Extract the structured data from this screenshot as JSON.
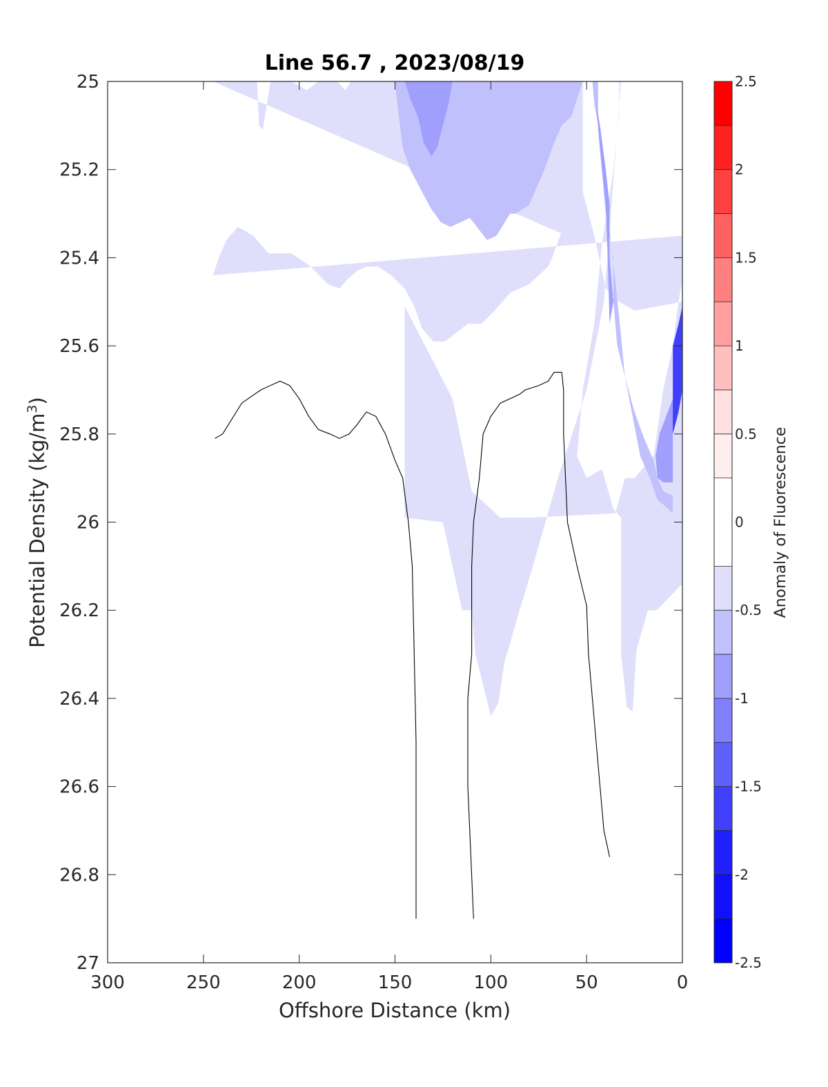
{
  "chart_data": {
    "type": "contour",
    "title": "Line 56.7 , 2023/08/19",
    "xlabel": "Offshore Distance (km)",
    "ylabel_base": "Potential Density (kg/m",
    "ylabel_sup": "3",
    "ylabel_close": ")",
    "xlim": [
      300,
      0
    ],
    "ylim": [
      25,
      27
    ],
    "y_reversed": true,
    "x_reversed": true,
    "xticks": [
      "300",
      "250",
      "200",
      "150",
      "100",
      "50",
      "0"
    ],
    "yticks": [
      "25",
      "25.2",
      "25.4",
      "25.6",
      "25.8",
      "26",
      "26.2",
      "26.4",
      "26.6",
      "26.8",
      "27"
    ],
    "xtick_values": [
      300,
      250,
      200,
      150,
      100,
      50,
      0
    ],
    "ytick_values": [
      25,
      25.2,
      25.4,
      25.6,
      25.8,
      26,
      26.2,
      26.4,
      26.6,
      26.8,
      27
    ],
    "colorbar": {
      "label": "Anomaly of Fluorescence",
      "range": [
        -2.5,
        2.5
      ],
      "tick_labels": [
        "2.5",
        "2",
        "1.5",
        "1",
        "0.5",
        "0",
        "-0.5",
        "-1",
        "-1.5",
        "-2",
        "-2.5"
      ],
      "tick_values": [
        2.5,
        2,
        1.5,
        1,
        0.5,
        0,
        -0.5,
        -1,
        -1.5,
        -2,
        -2.5
      ],
      "levels": [
        {
          "from": 2.25,
          "to": 2.5,
          "color": "#ff0000"
        },
        {
          "from": 2.0,
          "to": 2.25,
          "color": "#ff2020"
        },
        {
          "from": 1.75,
          "to": 2.0,
          "color": "#ff4040"
        },
        {
          "from": 1.5,
          "to": 1.75,
          "color": "#ff6060"
        },
        {
          "from": 1.25,
          "to": 1.5,
          "color": "#ff8080"
        },
        {
          "from": 1.0,
          "to": 1.25,
          "color": "#ff9f9f"
        },
        {
          "from": 0.75,
          "to": 1.0,
          "color": "#ffbfbf"
        },
        {
          "from": 0.5,
          "to": 0.75,
          "color": "#ffdfdf"
        },
        {
          "from": 0.25,
          "to": 0.5,
          "color": "#ffeeee"
        },
        {
          "from": -0.25,
          "to": 0.25,
          "color": "#ffffff"
        },
        {
          "from": -0.5,
          "to": -0.25,
          "color": "#dfdffc"
        },
        {
          "from": -0.75,
          "to": -0.5,
          "color": "#c0c0fc"
        },
        {
          "from": -1.0,
          "to": -0.75,
          "color": "#a0a0fc"
        },
        {
          "from": -1.25,
          "to": -1.0,
          "color": "#8080fc"
        },
        {
          "from": -1.5,
          "to": -1.25,
          "color": "#6060fc"
        },
        {
          "from": -1.75,
          "to": -1.5,
          "color": "#4040fc"
        },
        {
          "from": -2.0,
          "to": -1.75,
          "color": "#2020fc"
        },
        {
          "from": -2.25,
          "to": -2.0,
          "color": "#1010fc"
        },
        {
          "from": -2.5,
          "to": -2.25,
          "color": "#0000ff"
        }
      ]
    },
    "filled_regions": [
      {
        "level": -0.375,
        "color": "#dfdffc",
        "points": [
          [
            245,
            25.0
          ],
          [
            222,
            25.0
          ],
          [
            221,
            25.1
          ],
          [
            219,
            25.11
          ],
          [
            215,
            25.0
          ],
          [
            204,
            25.0
          ],
          [
            196,
            25.02
          ],
          [
            190,
            25.0
          ],
          [
            180,
            25.0
          ],
          [
            176,
            25.02
          ],
          [
            173,
            25.0
          ],
          [
            32,
            25.0
          ],
          [
            41,
            25.5
          ],
          [
            50,
            25.7
          ],
          [
            65,
            25.9
          ],
          [
            78,
            26.1
          ],
          [
            85,
            26.2
          ],
          [
            93,
            26.32
          ],
          [
            96,
            26.41
          ],
          [
            100,
            26.44
          ],
          [
            108,
            26.3
          ],
          [
            110,
            26.2
          ],
          [
            115,
            26.2
          ],
          [
            125,
            26.0
          ],
          [
            145,
            25.99
          ],
          [
            145,
            25.51
          ],
          [
            120,
            25.72
          ],
          [
            110,
            25.93
          ],
          [
            95,
            25.99
          ],
          [
            80,
            25.99
          ],
          [
            35,
            25.98
          ],
          [
            30,
            25.9
          ],
          [
            25,
            25.9
          ],
          [
            15,
            25.85
          ],
          [
            10,
            25.7
          ],
          [
            5,
            25.6
          ],
          [
            2,
            25.5
          ],
          [
            0,
            25.45
          ],
          [
            0,
            25.9
          ],
          [
            0,
            26.03
          ],
          [
            0,
            26.14
          ],
          [
            13.5,
            26.2
          ],
          [
            18,
            26.2
          ],
          [
            24,
            26.29
          ],
          [
            26,
            26.43
          ],
          [
            29,
            26.42
          ],
          [
            32,
            26.3
          ],
          [
            32,
            25.99
          ],
          [
            36,
            25.97
          ],
          [
            42,
            25.88
          ],
          [
            50,
            25.9
          ],
          [
            55,
            25.85
          ],
          [
            52,
            25.7
          ],
          [
            46,
            25.55
          ],
          [
            42,
            25.37
          ],
          [
            36,
            25.2
          ],
          [
            33,
            25.07
          ],
          [
            33,
            25.0
          ],
          [
            52,
            25.0
          ],
          [
            52,
            25.1
          ],
          [
            52,
            25.25
          ],
          [
            46,
            25.35
          ],
          [
            40,
            25.47
          ],
          [
            33,
            25.5
          ],
          [
            25,
            25.52
          ],
          [
            0,
            25.5
          ],
          [
            0,
            25.44
          ],
          [
            0,
            25.35
          ],
          [
            245,
            25.44
          ],
          [
            242,
            25.4
          ],
          [
            238,
            25.36
          ],
          [
            232,
            25.33
          ],
          [
            224,
            25.35
          ],
          [
            216,
            25.39
          ],
          [
            204,
            25.39
          ],
          [
            194,
            25.42
          ],
          [
            185,
            25.46
          ],
          [
            179,
            25.47
          ],
          [
            175,
            25.45
          ],
          [
            170,
            25.43
          ],
          [
            165,
            25.42
          ],
          [
            159,
            25.42
          ],
          [
            152,
            25.44
          ],
          [
            145,
            25.47
          ],
          [
            140,
            25.51
          ],
          [
            136,
            25.56
          ],
          [
            130,
            25.59
          ],
          [
            124,
            25.59
          ],
          [
            118,
            25.57
          ],
          [
            112,
            25.55
          ],
          [
            105,
            25.55
          ],
          [
            98,
            25.52
          ],
          [
            90,
            25.48
          ],
          [
            80,
            25.46
          ],
          [
            70,
            25.42
          ],
          [
            68,
            25.4
          ],
          [
            62,
            25.33
          ],
          [
            57,
            25.29
          ],
          [
            53,
            25.3
          ],
          [
            50,
            25.37
          ]
        ]
      },
      {
        "level": -0.625,
        "color": "#c0c0fc",
        "points": [
          [
            150,
            25.0
          ],
          [
            52,
            25.0
          ],
          [
            58,
            25.08
          ],
          [
            63,
            25.1
          ],
          [
            67,
            25.14
          ],
          [
            72,
            25.2
          ],
          [
            77,
            25.25
          ],
          [
            80,
            25.28
          ],
          [
            87,
            25.3
          ],
          [
            90,
            25.3
          ],
          [
            97,
            25.35
          ],
          [
            102,
            25.36
          ],
          [
            109,
            25.32
          ],
          [
            111,
            25.31
          ],
          [
            116,
            25.32
          ],
          [
            121,
            25.33
          ],
          [
            126,
            25.32
          ],
          [
            131,
            25.29
          ],
          [
            136,
            25.25
          ],
          [
            142,
            25.2
          ],
          [
            146,
            25.15
          ],
          [
            148,
            25.08
          ],
          [
            150,
            25.0
          ]
        ]
      },
      {
        "level": -0.875,
        "color": "#a0a0fc",
        "points": [
          [
            145,
            25.0
          ],
          [
            120,
            25.0
          ],
          [
            122,
            25.05
          ],
          [
            125,
            25.1
          ],
          [
            128,
            25.15
          ],
          [
            131,
            25.17
          ],
          [
            135,
            25.14
          ],
          [
            138,
            25.08
          ],
          [
            142,
            25.04
          ],
          [
            145,
            25.0
          ]
        ]
      },
      {
        "level": -0.625,
        "color": "#c0c0fc",
        "points": [
          [
            47,
            25.0
          ],
          [
            44,
            25.0
          ],
          [
            44,
            25.11
          ],
          [
            40,
            25.3
          ],
          [
            36,
            25.4
          ],
          [
            36,
            25.5
          ],
          [
            34,
            25.6
          ],
          [
            30,
            25.67
          ],
          [
            26,
            25.76
          ],
          [
            22,
            25.85
          ],
          [
            17,
            25.9
          ],
          [
            13,
            25.95
          ],
          [
            10,
            25.96
          ],
          [
            5,
            25.98
          ],
          [
            5,
            25.94
          ],
          [
            10,
            25.93
          ],
          [
            13,
            25.9
          ],
          [
            15,
            25.86
          ],
          [
            20,
            25.81
          ],
          [
            25,
            25.75
          ],
          [
            30,
            25.67
          ],
          [
            32,
            25.58
          ],
          [
            35,
            25.45
          ],
          [
            39,
            25.3
          ],
          [
            42,
            25.15
          ],
          [
            46,
            25.05
          ],
          [
            47,
            25.0
          ]
        ]
      },
      {
        "level": -0.875,
        "color": "#a0a0fc",
        "points": [
          [
            45,
            25.05
          ],
          [
            43,
            25.1
          ],
          [
            40,
            25.2
          ],
          [
            38,
            25.28
          ],
          [
            38,
            25.4
          ],
          [
            36,
            25.5
          ],
          [
            38,
            25.55
          ],
          [
            39,
            25.4
          ],
          [
            40,
            25.28
          ],
          [
            43,
            25.15
          ],
          [
            45,
            25.05
          ]
        ]
      },
      {
        "level": -0.875,
        "color": "#a0a0fc",
        "points": [
          [
            14,
            25.85
          ],
          [
            12,
            25.8
          ],
          [
            5,
            25.72
          ],
          [
            2,
            25.72
          ],
          [
            5,
            25.8
          ],
          [
            5,
            25.91
          ],
          [
            10,
            25.91
          ],
          [
            13,
            25.9
          ],
          [
            14,
            25.85
          ]
        ]
      },
      {
        "level": -1.625,
        "color": "#4040fc",
        "points": [
          [
            5,
            25.8
          ],
          [
            2,
            25.75
          ],
          [
            0,
            25.7
          ],
          [
            0,
            25.6
          ],
          [
            0,
            25.51
          ],
          [
            2,
            25.55
          ],
          [
            5,
            25.6
          ],
          [
            5,
            25.7
          ],
          [
            5,
            25.8
          ]
        ]
      }
    ],
    "contour_lines": [
      {
        "level": 0,
        "points": [
          [
            244,
            25.81
          ],
          [
            240,
            25.8
          ],
          [
            230,
            25.73
          ],
          [
            220,
            25.7
          ],
          [
            210,
            25.68
          ],
          [
            205,
            25.69
          ],
          [
            200,
            25.72
          ],
          [
            195,
            25.76
          ],
          [
            190,
            25.79
          ],
          [
            184,
            25.8
          ],
          [
            179,
            25.81
          ],
          [
            174,
            25.8
          ],
          [
            170,
            25.78
          ],
          [
            165,
            25.75
          ],
          [
            160,
            25.76
          ],
          [
            155,
            25.8
          ],
          [
            150,
            25.86
          ],
          [
            146,
            25.9
          ],
          [
            143,
            26.0
          ],
          [
            141,
            26.1
          ],
          [
            140,
            26.3
          ],
          [
            139,
            26.5
          ],
          [
            139,
            26.7
          ],
          [
            139,
            26.9
          ]
        ]
      },
      {
        "level": 0,
        "points": [
          [
            109,
            26.9
          ],
          [
            111,
            26.7
          ],
          [
            112,
            26.6
          ],
          [
            112,
            26.4
          ],
          [
            110,
            26.3
          ],
          [
            110,
            26.1
          ],
          [
            109,
            26.0
          ],
          [
            106,
            25.9
          ],
          [
            104,
            25.8
          ],
          [
            100,
            25.76
          ],
          [
            95,
            25.73
          ],
          [
            90,
            25.72
          ],
          [
            85,
            25.71
          ],
          [
            82,
            25.7
          ],
          [
            75,
            25.69
          ],
          [
            70,
            25.68
          ],
          [
            67,
            25.66
          ],
          [
            63,
            25.66
          ],
          [
            62,
            25.7
          ],
          [
            62,
            25.8
          ],
          [
            61,
            25.9
          ],
          [
            60,
            26.0
          ],
          [
            55,
            26.1
          ],
          [
            50,
            26.19
          ],
          [
            49,
            26.3
          ],
          [
            47,
            26.4
          ],
          [
            45,
            26.5
          ],
          [
            43,
            26.6
          ],
          [
            41,
            26.7
          ],
          [
            38,
            26.76
          ]
        ]
      }
    ]
  }
}
